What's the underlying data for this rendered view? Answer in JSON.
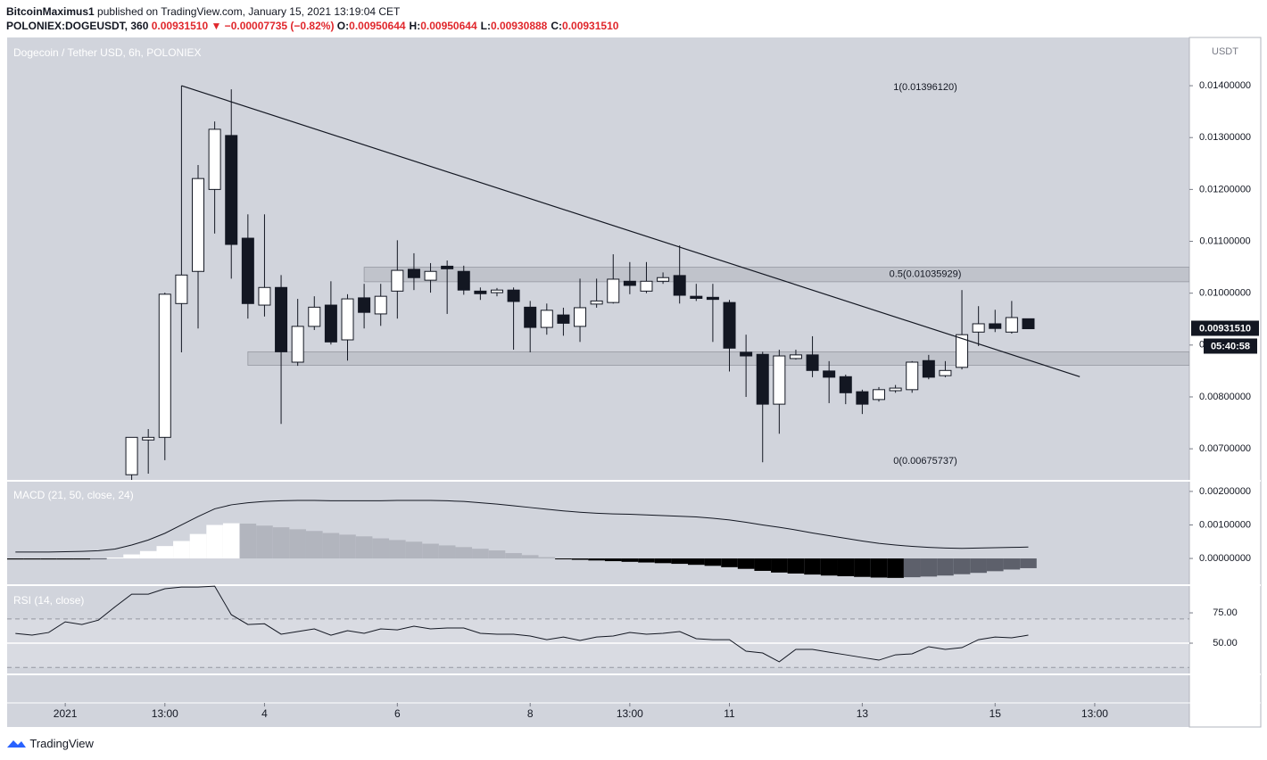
{
  "header": {
    "author": "BitcoinMaximus1",
    "published": "published on TradingView.com, January 15, 2021 13:19:04 CET",
    "symbol": "POLONIEX:DOGEUSDT, 360",
    "price": "0.00931510",
    "change": "▼ −0.00007735 (−0.82%)",
    "ohlc": [
      {
        "label": "O:",
        "value": "0.00950644"
      },
      {
        "label": "H:",
        "value": "0.00950644"
      },
      {
        "label": "L:",
        "value": "0.00930888"
      },
      {
        "label": "C:",
        "value": "0.00931510"
      }
    ]
  },
  "footer": {
    "brand": "TradingView"
  },
  "chart_data": {
    "type": "candlestick",
    "title": "Dogecoin / Tether USD, 6h, POLONIEX",
    "axis_unit": "USDT",
    "up_color": "#ffffff",
    "down_color": "#131722",
    "open": [
      0.0065,
      0.00717,
      0.00722,
      0.0098,
      0.01042,
      0.012,
      0.01304,
      0.01106,
      0.00977,
      0.01011,
      0.00867,
      0.00936,
      0.00977,
      0.0091,
      0.00991,
      0.0096,
      0.01004,
      0.01046,
      0.01025,
      0.01052,
      0.01042,
      0.01004,
      0.01001,
      0.01006,
      0.00973,
      0.00934,
      0.00958,
      0.00936,
      0.00979,
      0.00982,
      0.01023,
      0.01004,
      0.01023,
      0.01034,
      0.00994,
      0.00992,
      0.00982,
      0.00886,
      0.00882,
      0.00786,
      0.00874,
      0.00881,
      0.0085,
      0.00839,
      0.0081,
      0.00795,
      0.00812,
      0.00814,
      0.0087,
      0.00841,
      0.00857,
      0.00925,
      0.00941,
      0.00925,
      0.00950644
    ],
    "high": [
      0.00722,
      0.00738,
      0.01001,
      0.014,
      0.01247,
      0.01331,
      0.01393,
      0.01152,
      0.01152,
      0.01035,
      0.00989,
      0.00994,
      0.01023,
      0.00998,
      0.01018,
      0.01018,
      0.01102,
      0.01077,
      0.01058,
      0.01063,
      0.01053,
      0.01011,
      0.0101,
      0.01011,
      0.00985,
      0.0098,
      0.00972,
      0.01028,
      0.01028,
      0.01075,
      0.0106,
      0.0106,
      0.0104,
      0.01092,
      0.01018,
      0.01018,
      0.00987,
      0.0092,
      0.00887,
      0.00891,
      0.00891,
      0.00917,
      0.00869,
      0.00843,
      0.00814,
      0.00819,
      0.00823,
      0.00869,
      0.00881,
      0.00869,
      0.01006,
      0.00975,
      0.00968,
      0.00985,
      0.00950644
    ],
    "low": [
      0.0064,
      0.00652,
      0.00678,
      0.00886,
      0.00932,
      0.01115,
      0.01028,
      0.00951,
      0.00955,
      0.00748,
      0.0086,
      0.00929,
      0.00901,
      0.0087,
      0.00932,
      0.00937,
      0.00951,
      0.01006,
      0.01001,
      0.0096,
      0.00997,
      0.00987,
      0.00994,
      0.00891,
      0.00886,
      0.0092,
      0.00918,
      0.00906,
      0.00972,
      0.0098,
      0.00998,
      0.01,
      0.01018,
      0.0098,
      0.00985,
      0.00906,
      0.00849,
      0.008,
      0.00674,
      0.00729,
      0.00872,
      0.00838,
      0.00788,
      0.00786,
      0.00767,
      0.00791,
      0.00808,
      0.00808,
      0.00834,
      0.00838,
      0.00853,
      0.00898,
      0.00925,
      0.00922,
      0.00930888
    ],
    "close": [
      0.00722,
      0.00722,
      0.00998,
      0.01035,
      0.01221,
      0.01316,
      0.01094,
      0.0098,
      0.01011,
      0.00887,
      0.00936,
      0.00973,
      0.00906,
      0.00989,
      0.00963,
      0.00994,
      0.01044,
      0.0103,
      0.01042,
      0.01047,
      0.01006,
      0.00999,
      0.01006,
      0.00984,
      0.00934,
      0.00967,
      0.00942,
      0.00972,
      0.00985,
      0.01027,
      0.01015,
      0.01023,
      0.0103,
      0.00996,
      0.0099,
      0.00988,
      0.00894,
      0.00879,
      0.00786,
      0.00879,
      0.00881,
      0.00851,
      0.00838,
      0.00808,
      0.00786,
      0.00814,
      0.00817,
      0.00867,
      0.00838,
      0.00851,
      0.0092,
      0.00941,
      0.00932,
      0.00953,
      0.0093151
    ],
    "xlim": [
      -7.5,
      63.7
    ],
    "xticks": [
      {
        "value": -4,
        "label": "2021"
      },
      {
        "value": 2,
        "label": "13:00"
      },
      {
        "value": 8,
        "label": "4"
      },
      {
        "value": 16,
        "label": "6"
      },
      {
        "value": 24,
        "label": "8"
      },
      {
        "value": 30,
        "label": "13:00"
      },
      {
        "value": 36,
        "label": "11"
      },
      {
        "value": 44,
        "label": "13"
      },
      {
        "value": 52,
        "label": "15"
      },
      {
        "value": 58,
        "label": "13:00"
      }
    ],
    "ylim": [
      0.0064,
      0.01493
    ],
    "yticks": [
      {
        "value": 0.007,
        "label": "0.00700000"
      },
      {
        "value": 0.008,
        "label": "0.00800000"
      },
      {
        "value": 0.009,
        "label": "0.00900000"
      },
      {
        "value": 0.01,
        "label": "0.01000000"
      },
      {
        "value": 0.011,
        "label": "0.01100000"
      },
      {
        "value": 0.012,
        "label": "0.01200000"
      },
      {
        "value": 0.013,
        "label": "0.01300000"
      },
      {
        "value": 0.014,
        "label": "0.01400000"
      }
    ],
    "last_price": {
      "value": 0.0093151,
      "label": "0.00931510"
    },
    "countdown": "05:40:58",
    "fib_levels": [
      {
        "value": 0.0139612,
        "label": "1(0.01396120)"
      },
      {
        "value": 0.01035929,
        "label": "0.5(0.01035929)"
      },
      {
        "value": 0.00675737,
        "label": "0(0.00675737)"
      }
    ],
    "zones": [
      {
        "from": 14,
        "top": 0.0105,
        "bottom": 0.01022
      },
      {
        "from": 7,
        "top": 0.00887,
        "bottom": 0.00861
      }
    ],
    "trendline": {
      "x": [
        3,
        57.1
      ],
      "y": [
        0.014,
        0.00839
      ]
    },
    "macd": {
      "title": "MACD (21, 50, close, 24)",
      "xlim": [
        -0.5,
        70.7
      ],
      "ylim": [
        -0.00077,
        0.00229
      ],
      "yticks": [
        {
          "value": 0,
          "label": "0.00000000"
        },
        {
          "value": 0.001,
          "label": "0.00100000"
        },
        {
          "value": 0.002,
          "label": "0.00200000"
        }
      ],
      "colors": {
        "up_rising": "#ffffff",
        "up_falling": "#b2b5be",
        "down_falling": "#000000",
        "down_rising": "#5d606b",
        "line": "#131722"
      },
      "line": [
        0.00019,
        0.00019,
        0.00019,
        0.0002,
        0.00021,
        0.00023,
        0.00028,
        0.0004,
        0.00055,
        0.00075,
        0.001,
        0.00125,
        0.00148,
        0.0016,
        0.00166,
        0.0017,
        0.00172,
        0.00173,
        0.00173,
        0.00172,
        0.00172,
        0.00172,
        0.00172,
        0.00173,
        0.00173,
        0.00173,
        0.00172,
        0.0017,
        0.00166,
        0.00162,
        0.00157,
        0.00152,
        0.00147,
        0.00142,
        0.00138,
        0.00135,
        0.00133,
        0.00132,
        0.0013,
        0.00128,
        0.00126,
        0.00124,
        0.0012,
        0.00115,
        0.00108,
        0.001,
        0.00093,
        0.00085,
        0.00076,
        0.00068,
        0.0006,
        0.00052,
        0.00045,
        0.0004,
        0.00036,
        0.00033,
        0.00031,
        0.0003,
        0.00031,
        0.00032,
        0.00033,
        0.00034
      ],
      "histogram": [
        -3e-05,
        -3e-05,
        -3e-05,
        -3e-05,
        -3e-05,
        -2e-05,
        3e-05,
        0.00012,
        0.00022,
        0.00037,
        0.00052,
        0.00073,
        0.001,
        0.00105,
        0.00104,
        0.00098,
        0.00093,
        0.00087,
        0.00082,
        0.00076,
        0.00071,
        0.00066,
        0.0006,
        0.00055,
        0.0005,
        0.00044,
        0.00039,
        0.00034,
        0.00029,
        0.00024,
        0.00016,
        0.0001,
        4e-05,
        -2e-05,
        -4e-05,
        -6e-05,
        -8e-05,
        -0.0001,
        -0.00012,
        -0.00014,
        -0.00016,
        -0.00019,
        -0.00022,
        -0.00026,
        -0.00031,
        -0.00037,
        -0.00042,
        -0.00045,
        -0.00048,
        -0.00051,
        -0.00053,
        -0.00055,
        -0.00057,
        -0.00058,
        -0.00056,
        -0.00054,
        -0.00051,
        -0.00047,
        -0.00043,
        -0.00038,
        -0.00033,
        -0.00029
      ]
    },
    "rsi": {
      "title": "RSI (14, close)",
      "xlim": [
        -0.5,
        70.7
      ],
      "ylim": [
        25,
        97.1
      ],
      "bands": [
        30,
        70
      ],
      "midline": 50,
      "yticks": [
        {
          "value": 50,
          "label": "50.00"
        },
        {
          "value": 75,
          "label": "75.00"
        }
      ],
      "values": [
        58,
        56.6,
        58.8,
        67.6,
        65.4,
        69,
        80,
        90.4,
        90.4,
        94.9,
        96.3,
        96.3,
        97,
        73.5,
        65.4,
        66,
        57.4,
        59.6,
        61.8,
        56.6,
        60.3,
        58.1,
        61.8,
        61,
        64,
        61.8,
        62.5,
        62.5,
        58.1,
        57.4,
        57.4,
        55.9,
        52.9,
        55.1,
        52.2,
        55.1,
        55.9,
        58.8,
        57.4,
        58.1,
        59.6,
        53.7,
        52.9,
        52.9,
        43.4,
        41.9,
        34.6,
        44.9,
        44.9,
        42.6,
        40.4,
        38.2,
        36,
        40.4,
        41.2,
        47.1,
        44.9,
        46.3,
        52.9,
        55.1,
        54.4,
        56.6
      ]
    }
  }
}
